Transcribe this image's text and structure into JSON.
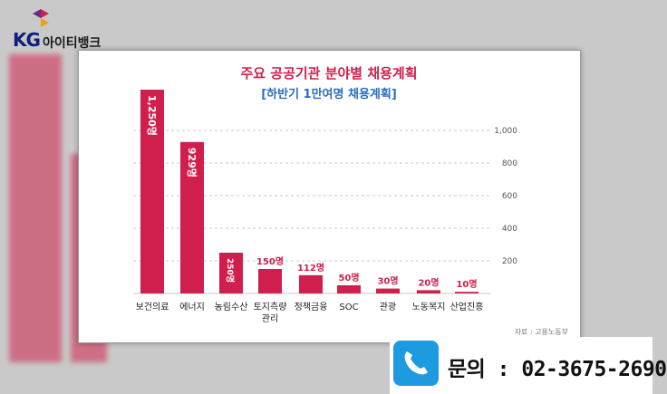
{
  "brand": {
    "logo_text": "KG",
    "name": "아이티뱅크"
  },
  "chart_data": {
    "type": "bar",
    "title": "주요 공공기관 분야별 채용계획",
    "subtitle": "[하반기 1만여명 채용계획]",
    "categories": [
      "보건의료",
      "에너지",
      "농림수산",
      "토지측량 관리",
      "정책금융",
      "SOC",
      "관광",
      "노동복지",
      "산업진흥"
    ],
    "values": [
      1250,
      929,
      250,
      150,
      112,
      50,
      30,
      20,
      10
    ],
    "value_labels": [
      "1,250명",
      "929명",
      "250명",
      "150명",
      "112명",
      "50명",
      "30명",
      "20명",
      "10명"
    ],
    "yticks": [
      "200",
      "400",
      "600",
      "800",
      "1,000"
    ],
    "ytick_values": [
      200,
      400,
      600,
      800,
      1000
    ],
    "ylim": [
      0,
      1250
    ],
    "grid": true,
    "bar_color": "#d01f4c",
    "source": "자료 : 고용노동부"
  },
  "contact": {
    "text": "문의 : 02-3675-2690"
  },
  "colors": {
    "accent": "#d01f4c",
    "subtitle": "#2a6dc4",
    "phone": "#1e9be0"
  }
}
